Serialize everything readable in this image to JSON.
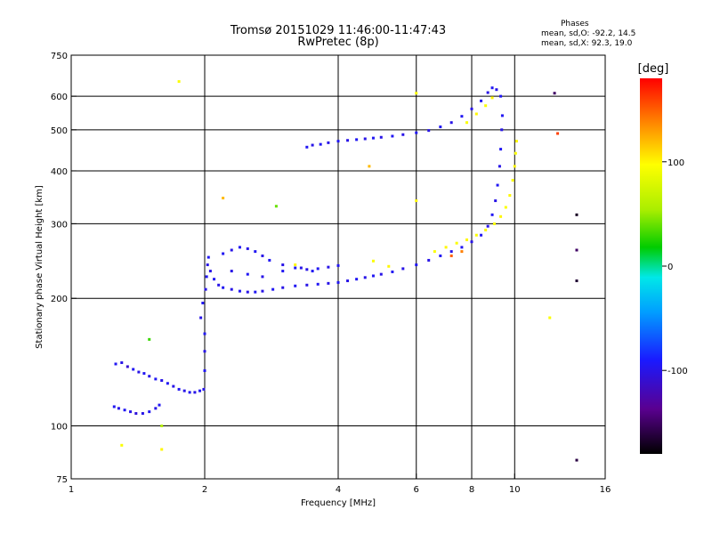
{
  "header": {
    "title": "Tromsø 20151029 11:46:00-11:47:43",
    "subtitle": "RwPretec (8p)",
    "phases_heading": "Phases",
    "mean_sd_o": "mean, sd,O: -92.2, 14.5",
    "mean_sd_x": "mean, sd,X:  92.3, 19.0"
  },
  "colorbar": {
    "label": "[deg]",
    "ticks": [
      {
        "value": 100,
        "label": "100"
      },
      {
        "value": 0,
        "label": "0"
      },
      {
        "value": -100,
        "label": "-100"
      }
    ],
    "range": [
      -180,
      180
    ]
  },
  "chart_data": {
    "type": "scatter",
    "title": "Tromsø 20151029 11:46:00-11:47:43",
    "subtitle": "RwPretec (8p)",
    "xlabel": "Frequency [MHz]",
    "ylabel": "Stationary phase Virtual Height [km]",
    "xscale": "log",
    "yscale": "log",
    "xlim": [
      1,
      16
    ],
    "ylim": [
      75,
      750
    ],
    "grid": true,
    "xticks": [
      {
        "value": 1,
        "label": "1"
      },
      {
        "value": 2,
        "label": "2"
      },
      {
        "value": 4,
        "label": "4"
      },
      {
        "value": 6,
        "label": "6"
      },
      {
        "value": 8,
        "label": "8"
      },
      {
        "value": 10,
        "label": "10"
      },
      {
        "value": 16,
        "label": "16"
      }
    ],
    "yticks": [
      {
        "value": 75,
        "label": "75"
      },
      {
        "value": 100,
        "label": "100"
      },
      {
        "value": 200,
        "label": "200"
      },
      {
        "value": 300,
        "label": "300"
      },
      {
        "value": 400,
        "label": "400"
      },
      {
        "value": 500,
        "label": "500"
      },
      {
        "value": 600,
        "label": "600"
      },
      {
        "value": 750,
        "label": "750"
      }
    ],
    "color_encoding": "phase [deg]",
    "series": [
      {
        "points": [
          [
            1.25,
            111,
            -95
          ],
          [
            1.28,
            110,
            -100
          ],
          [
            1.32,
            109,
            -95
          ],
          [
            1.36,
            108,
            -100
          ],
          [
            1.4,
            107,
            -105
          ],
          [
            1.45,
            107,
            -100
          ],
          [
            1.5,
            108,
            -95
          ],
          [
            1.55,
            110,
            -100
          ],
          [
            1.58,
            112,
            -95
          ],
          [
            1.26,
            140,
            -95
          ],
          [
            1.3,
            141,
            -100
          ],
          [
            1.34,
            138,
            -110
          ],
          [
            1.38,
            136,
            -95
          ],
          [
            1.42,
            134,
            -100
          ],
          [
            1.46,
            133,
            -95
          ],
          [
            1.5,
            131,
            -100
          ],
          [
            1.55,
            129,
            -95
          ],
          [
            1.6,
            128,
            -100
          ],
          [
            1.65,
            126,
            -95
          ],
          [
            1.7,
            124,
            -100
          ],
          [
            1.75,
            122,
            -95
          ],
          [
            1.8,
            121,
            -100
          ],
          [
            1.85,
            120,
            -95
          ],
          [
            1.9,
            120,
            -100
          ],
          [
            1.95,
            121,
            -95
          ],
          [
            1.99,
            122,
            -100
          ],
          [
            2.0,
            135,
            -95
          ],
          [
            2.0,
            150,
            -100
          ],
          [
            2.0,
            165,
            -95
          ],
          [
            1.96,
            180,
            -100
          ],
          [
            1.98,
            195,
            -95
          ],
          [
            2.01,
            210,
            -100
          ],
          [
            2.02,
            225,
            -95
          ],
          [
            2.03,
            240,
            -100
          ],
          [
            2.04,
            250,
            -95
          ],
          [
            2.06,
            232,
            -100
          ],
          [
            2.1,
            222,
            -95
          ],
          [
            2.15,
            215,
            -100
          ],
          [
            2.2,
            212,
            -95
          ],
          [
            2.3,
            210,
            -100
          ],
          [
            2.4,
            208,
            -95
          ],
          [
            2.5,
            207,
            -100
          ],
          [
            2.6,
            207,
            -95
          ],
          [
            2.7,
            208,
            -100
          ],
          [
            2.85,
            210,
            -95
          ],
          [
            3.0,
            212,
            -100
          ],
          [
            3.2,
            214,
            -95
          ],
          [
            3.4,
            215,
            -100
          ],
          [
            3.6,
            216,
            -95
          ],
          [
            3.8,
            217,
            -100
          ],
          [
            4.0,
            218,
            -95
          ],
          [
            4.2,
            220,
            -100
          ],
          [
            4.4,
            222,
            -95
          ],
          [
            4.6,
            224,
            -100
          ],
          [
            4.8,
            226,
            -95
          ],
          [
            5.0,
            228,
            -100
          ],
          [
            5.3,
            231,
            -95
          ],
          [
            5.6,
            235,
            -100
          ],
          [
            6.0,
            240,
            -95
          ],
          [
            6.4,
            246,
            -100
          ],
          [
            6.8,
            252,
            -95
          ],
          [
            7.2,
            258,
            -100
          ],
          [
            7.6,
            264,
            -95
          ],
          [
            8.0,
            272,
            -100
          ],
          [
            8.4,
            282,
            -95
          ],
          [
            8.7,
            296,
            -100
          ],
          [
            8.9,
            315,
            -95
          ],
          [
            9.05,
            340,
            -100
          ],
          [
            9.15,
            370,
            -95
          ],
          [
            9.25,
            410,
            -100
          ],
          [
            9.3,
            450,
            -95
          ],
          [
            9.35,
            500,
            -100
          ],
          [
            9.38,
            540,
            -95
          ],
          [
            2.2,
            255,
            -95
          ],
          [
            2.3,
            260,
            -100
          ],
          [
            2.4,
            264,
            -95
          ],
          [
            2.5,
            262,
            -100
          ],
          [
            2.6,
            258,
            -95
          ],
          [
            2.7,
            252,
            -100
          ],
          [
            2.8,
            246,
            -95
          ],
          [
            3.0,
            240,
            -100
          ],
          [
            3.2,
            236,
            -95
          ],
          [
            3.4,
            234,
            -100
          ],
          [
            3.6,
            235,
            -95
          ],
          [
            3.8,
            237,
            -100
          ],
          [
            4.0,
            239,
            -95
          ],
          [
            2.3,
            232,
            -100
          ],
          [
            2.5,
            228,
            -95
          ],
          [
            2.7,
            225,
            -100
          ],
          [
            3.0,
            232,
            -95
          ],
          [
            3.3,
            236,
            -100
          ],
          [
            3.5,
            232,
            -95
          ],
          [
            3.4,
            455,
            -95
          ],
          [
            3.5,
            460,
            -100
          ],
          [
            3.65,
            462,
            -95
          ],
          [
            3.8,
            466,
            -100
          ],
          [
            4.0,
            470,
            -95
          ],
          [
            4.2,
            472,
            -100
          ],
          [
            4.4,
            474,
            -95
          ],
          [
            4.6,
            476,
            -100
          ],
          [
            4.8,
            478,
            -95
          ],
          [
            5.0,
            480,
            -100
          ],
          [
            5.3,
            483,
            -95
          ],
          [
            5.6,
            487,
            -100
          ],
          [
            6.0,
            492,
            -95
          ],
          [
            6.4,
            498,
            -100
          ],
          [
            6.8,
            508,
            -95
          ],
          [
            7.2,
            520,
            -100
          ],
          [
            7.6,
            538,
            -95
          ],
          [
            8.0,
            560,
            -100
          ],
          [
            8.4,
            585,
            -95
          ],
          [
            8.7,
            612,
            -100
          ],
          [
            8.9,
            628,
            -95
          ],
          [
            9.1,
            622,
            -100
          ],
          [
            9.3,
            600,
            -95
          ]
        ]
      },
      {
        "points": [
          [
            4.8,
            245,
            95
          ],
          [
            5.2,
            238,
            100
          ],
          [
            6.6,
            258,
            95
          ],
          [
            7.0,
            264,
            100
          ],
          [
            7.4,
            270,
            95
          ],
          [
            7.8,
            275,
            100
          ],
          [
            8.2,
            282,
            95
          ],
          [
            8.6,
            290,
            100
          ],
          [
            9.0,
            300,
            95
          ],
          [
            9.3,
            312,
            100
          ],
          [
            9.55,
            328,
            95
          ],
          [
            9.75,
            350,
            100
          ],
          [
            9.9,
            380,
            95
          ],
          [
            10.0,
            410,
            100
          ],
          [
            10.05,
            440,
            95
          ],
          [
            10.1,
            470,
            100
          ],
          [
            7.8,
            520,
            95
          ],
          [
            8.2,
            545,
            100
          ],
          [
            8.6,
            570,
            95
          ],
          [
            8.9,
            595,
            100
          ],
          [
            1.75,
            650,
            95
          ],
          [
            6.0,
            340,
            100
          ],
          [
            6.0,
            610,
            95
          ],
          [
            3.2,
            240,
            100
          ],
          [
            1.3,
            90,
            95
          ],
          [
            1.6,
            88,
            100
          ],
          [
            12.0,
            180,
            95
          ]
        ]
      },
      {
        "points": [
          [
            2.9,
            330,
            40
          ],
          [
            1.5,
            160,
            30
          ],
          [
            1.6,
            100,
            60
          ],
          [
            7.2,
            252,
            150
          ],
          [
            7.6,
            258,
            140
          ],
          [
            4.7,
            410,
            120
          ],
          [
            12.3,
            610,
            -150
          ],
          [
            13.8,
            315,
            -170
          ],
          [
            13.8,
            220,
            -165
          ],
          [
            13.8,
            83,
            -160
          ],
          [
            13.8,
            260,
            -150
          ],
          [
            2.2,
            345,
            120
          ],
          [
            12.5,
            490,
            160
          ]
        ]
      }
    ]
  }
}
